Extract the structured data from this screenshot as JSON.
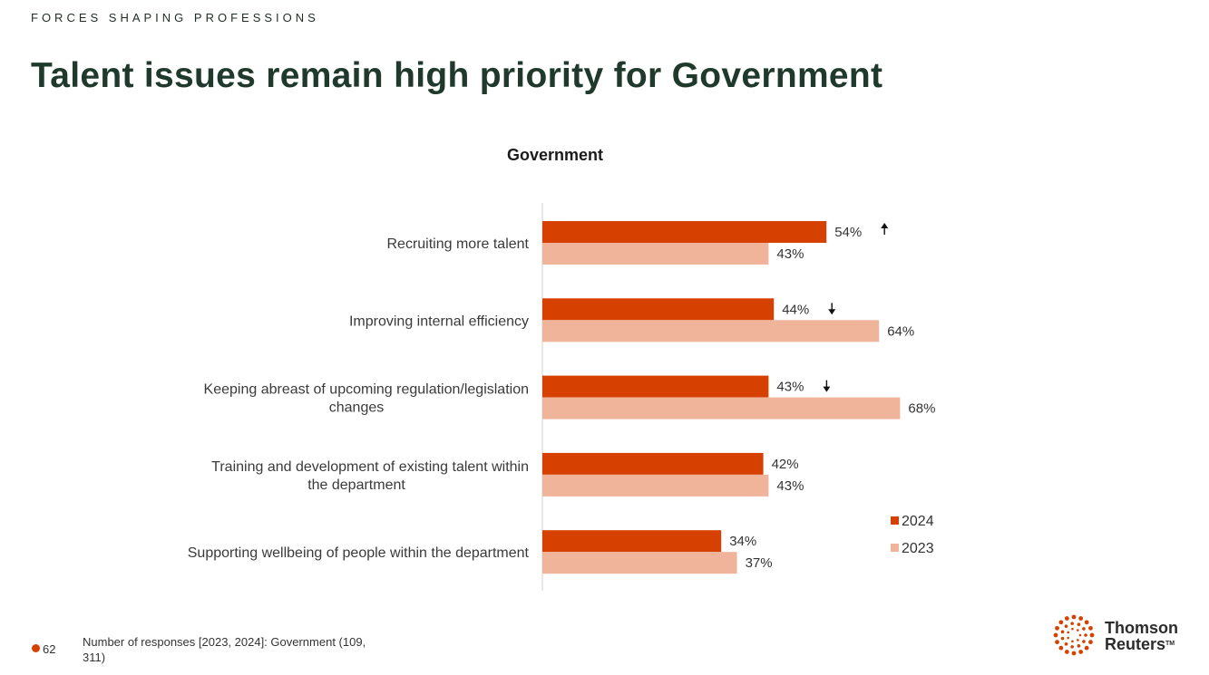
{
  "header": {
    "eyebrow": "FORCES SHAPING PROFESSIONS",
    "title": "Talent issues remain high priority for Government"
  },
  "chart_data": {
    "type": "bar",
    "orientation": "horizontal",
    "title": "Government",
    "categories": [
      "Recruiting more talent",
      "Improving internal efficiency",
      "Keeping abreast of upcoming regulation/legislation changes",
      "Training and development of existing talent within the department",
      "Supporting wellbeing of people within the department"
    ],
    "series": [
      {
        "name": "2024",
        "color": "#d64000",
        "values": [
          54,
          44,
          43,
          42,
          34
        ],
        "labels": [
          "54%",
          "44%",
          "43%",
          "42%",
          "34%"
        ]
      },
      {
        "name": "2023",
        "color": "#f0b49b",
        "values": [
          43,
          64,
          68,
          43,
          37
        ],
        "labels": [
          "43%",
          "64%",
          "68%",
          "43%",
          "37%"
        ]
      }
    ],
    "trend_markers": [
      "up",
      "down",
      "down",
      null,
      null
    ],
    "xlim": [
      0,
      80
    ],
    "legend_position": "right",
    "grid": false
  },
  "footer": {
    "page_number": "62",
    "note": "Number of responses [2023, 2024]: Government (109, 311)"
  },
  "logo": {
    "line1": "Thomson",
    "line2": "Reuters",
    "tm": "TM",
    "accent": "#d64000"
  }
}
